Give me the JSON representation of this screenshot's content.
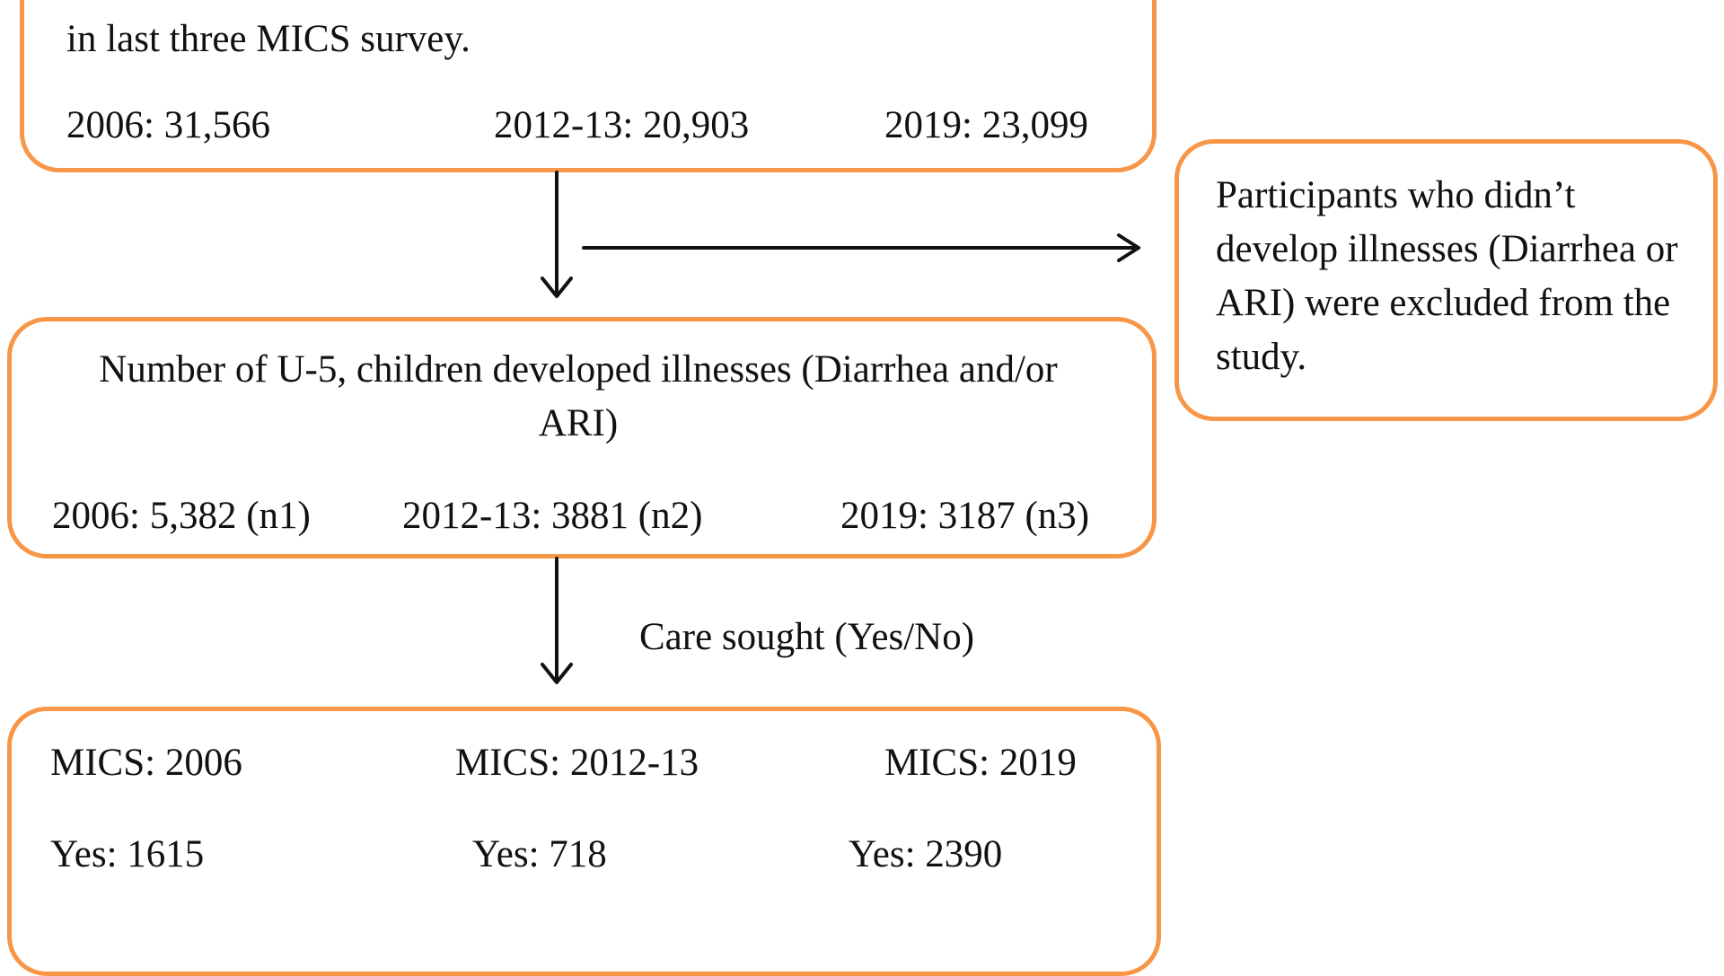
{
  "box_top": {
    "line_partial": "in last three MICS survey.",
    "counts": [
      "2006: 31,566",
      "2012-13: 20,903",
      "2019: 23,099"
    ]
  },
  "box_exclusion": {
    "text": "Participants who didn’t develop illnesses (Diarrhea or ARI) were excluded from the study."
  },
  "box_middle": {
    "title": "Number of U-5, children developed illnesses (Diarrhea and/or ARI)",
    "counts": [
      "2006: 5,382 (n1)",
      "2012-13: 3881 (n2)",
      "2019: 3187 (n3)"
    ]
  },
  "arrow_label": "Care sought (Yes/No)",
  "box_bottom": {
    "surveys": [
      "MICS: 2006",
      "MICS: 2012-13",
      "MICS: 2019"
    ],
    "yes_counts": [
      "Yes: 1615",
      "Yes: 718",
      "Yes: 2390"
    ]
  },
  "colors": {
    "box_border": "#f79646",
    "arrow": "#111111"
  }
}
